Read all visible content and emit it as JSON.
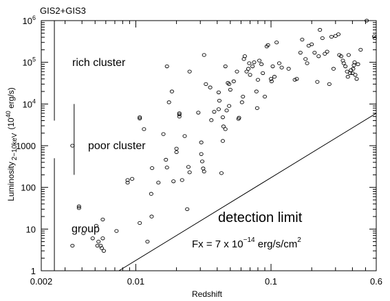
{
  "chart_data": {
    "type": "scatter",
    "title": "GIS2+GIS3",
    "xlabel": "Redshift",
    "ylabel": {
      "main": "Luminosity",
      "subscript": "2−10keV",
      "unit_pre": "(10",
      "unit_exp": "40",
      "unit_post": " erg/s)"
    },
    "x_scale": "log",
    "y_scale": "log",
    "xlim": [
      0.002,
      0.6
    ],
    "ylim": [
      1,
      1000000
    ],
    "x_ticks": [
      {
        "value": 0.002,
        "label": "0.002"
      },
      {
        "value": 0.01,
        "label": "0.01"
      },
      {
        "value": 0.1,
        "label": "0.1"
      },
      {
        "value": 0.6,
        "label": "0.6"
      }
    ],
    "y_ticks": [
      {
        "value": 1,
        "label": "1"
      },
      {
        "value": 10,
        "label": "10"
      },
      {
        "value": 100,
        "label": "100"
      },
      {
        "value": 1000,
        "label": "1000"
      },
      {
        "value": 10000,
        "base": "10",
        "exp": "4"
      },
      {
        "value": 100000,
        "base": "10",
        "exp": "5"
      },
      {
        "value": 1000000,
        "base": "10",
        "exp": "6"
      }
    ],
    "grid": false,
    "annotations": {
      "rich": "rich cluster",
      "poor": "poor cluster",
      "group": "group",
      "detection": "detection limit",
      "formula_pre": "Fx = 7 x 10",
      "formula_exp": "−14",
      "formula_mid": " erg/s/cm",
      "formula_exp2": "2"
    },
    "detection_limit": {
      "x": [
        0.0075,
        0.6
      ],
      "y": [
        1,
        6000
      ]
    },
    "class_bars": [
      {
        "name": "rich",
        "x": 0.0025,
        "y": [
          4000,
          1000000
        ]
      },
      {
        "name": "poor",
        "x": 0.0035,
        "y": [
          200,
          10000
        ]
      },
      {
        "name": "group",
        "x": 0.0025,
        "y": [
          1,
          500
        ]
      }
    ],
    "series": [
      {
        "points": [
          [
            0.0034,
            1000
          ],
          [
            0.0038,
            35
          ],
          [
            0.0038,
            32
          ],
          [
            0.0041,
            8
          ],
          [
            0.0034,
            4
          ],
          [
            0.0048,
            6
          ],
          [
            0.0053,
            5
          ],
          [
            0.0055,
            4
          ],
          [
            0.0056,
            3.5
          ],
          [
            0.0058,
            3
          ],
          [
            0.0057,
            17
          ],
          [
            0.0057,
            6
          ],
          [
            0.0052,
            4
          ],
          [
            0.0051,
            12
          ],
          [
            0.0072,
            9
          ],
          [
            0.0087,
            130
          ],
          [
            0.0087,
            150
          ],
          [
            0.0094,
            160
          ],
          [
            0.0107,
            4500
          ],
          [
            0.0107,
            4800
          ],
          [
            0.0107,
            14
          ],
          [
            0.0115,
            2500
          ],
          [
            0.0122,
            5
          ],
          [
            0.013,
            70
          ],
          [
            0.0131,
            20
          ],
          [
            0.0132,
            290
          ],
          [
            0.0147,
            130
          ],
          [
            0.016,
            1900
          ],
          [
            0.0167,
            460
          ],
          [
            0.017,
            80000
          ],
          [
            0.017,
            300
          ],
          [
            0.0176,
            11000
          ],
          [
            0.0185,
            20000
          ],
          [
            0.019,
            140
          ],
          [
            0.02,
            850
          ],
          [
            0.02,
            700
          ],
          [
            0.021,
            5000
          ],
          [
            0.021,
            6000
          ],
          [
            0.021,
            5600
          ],
          [
            0.023,
            1700
          ],
          [
            0.022,
            150
          ],
          [
            0.024,
            30
          ],
          [
            0.0245,
            310
          ],
          [
            0.025,
            230
          ],
          [
            0.025,
            60000
          ],
          [
            0.029,
            6200
          ],
          [
            0.0305,
            1200
          ],
          [
            0.0305,
            630
          ],
          [
            0.031,
            420
          ],
          [
            0.0315,
            285
          ],
          [
            0.032,
            240
          ],
          [
            0.032,
            150000
          ],
          [
            0.033,
            30000
          ],
          [
            0.0355,
            25000
          ],
          [
            0.0362,
            4100
          ],
          [
            0.038,
            6500
          ],
          [
            0.041,
            7500
          ],
          [
            0.041,
            19000
          ],
          [
            0.0415,
            12000
          ],
          [
            0.043,
            220
          ],
          [
            0.044,
            1300
          ],
          [
            0.044,
            4800
          ],
          [
            0.0445,
            2900
          ],
          [
            0.047,
            7000
          ],
          [
            0.046,
            2500
          ],
          [
            0.046,
            80000
          ],
          [
            0.048,
            32000
          ],
          [
            0.049,
            9000
          ],
          [
            0.049,
            30000
          ],
          [
            0.05,
            22000
          ],
          [
            0.053,
            35000
          ],
          [
            0.056,
            60000
          ],
          [
            0.0575,
            4400
          ],
          [
            0.058,
            4700
          ],
          [
            0.061,
            11000
          ],
          [
            0.062,
            15000
          ],
          [
            0.064,
            140000
          ],
          [
            0.063,
            120000
          ],
          [
            0.066,
            60000
          ],
          [
            0.068,
            70000
          ],
          [
            0.069,
            95000
          ],
          [
            0.07,
            50000
          ],
          [
            0.073,
            80000
          ],
          [
            0.075,
            100000
          ],
          [
            0.078,
            20000
          ],
          [
            0.079,
            8000
          ],
          [
            0.08,
            38000
          ],
          [
            0.082,
            110000
          ],
          [
            0.085,
            90000
          ],
          [
            0.087,
            55000
          ],
          [
            0.09,
            15000
          ],
          [
            0.093,
            240000
          ],
          [
            0.095,
            260000
          ],
          [
            0.1,
            40000
          ],
          [
            0.101,
            35000
          ],
          [
            0.103,
            80000
          ],
          [
            0.106,
            45000
          ],
          [
            0.11,
            300000
          ],
          [
            0.115,
            95000
          ],
          [
            0.12,
            75000
          ],
          [
            0.135,
            70000
          ],
          [
            0.15,
            38000
          ],
          [
            0.155,
            40000
          ],
          [
            0.165,
            170000
          ],
          [
            0.17,
            350000
          ],
          [
            0.18,
            120000
          ],
          [
            0.185,
            95000
          ],
          [
            0.19,
            250000
          ],
          [
            0.2,
            270000
          ],
          [
            0.21,
            170000
          ],
          [
            0.22,
            34000
          ],
          [
            0.225,
            140000
          ],
          [
            0.23,
            600000
          ],
          [
            0.24,
            380000
          ],
          [
            0.25,
            160000
          ],
          [
            0.26,
            180000
          ],
          [
            0.27,
            30000
          ],
          [
            0.28,
            410000
          ],
          [
            0.29,
            70000
          ],
          [
            0.3,
            430000
          ],
          [
            0.315,
            470000
          ],
          [
            0.32,
            150000
          ],
          [
            0.33,
            140000
          ],
          [
            0.34,
            110000
          ],
          [
            0.345,
            95000
          ],
          [
            0.355,
            80000
          ],
          [
            0.365,
            60000
          ],
          [
            0.37,
            45000
          ],
          [
            0.375,
            150000
          ],
          [
            0.385,
            55000
          ],
          [
            0.39,
            65000
          ],
          [
            0.4,
            55000
          ],
          [
            0.405,
            70000
          ],
          [
            0.41,
            85000
          ],
          [
            0.415,
            100000
          ],
          [
            0.42,
            50000
          ],
          [
            0.43,
            40000
          ],
          [
            0.44,
            90000
          ],
          [
            0.46,
            200000
          ],
          [
            0.51,
            1000000
          ],
          [
            0.58,
            420000
          ],
          [
            0.585,
            380000
          ]
        ]
      }
    ]
  }
}
